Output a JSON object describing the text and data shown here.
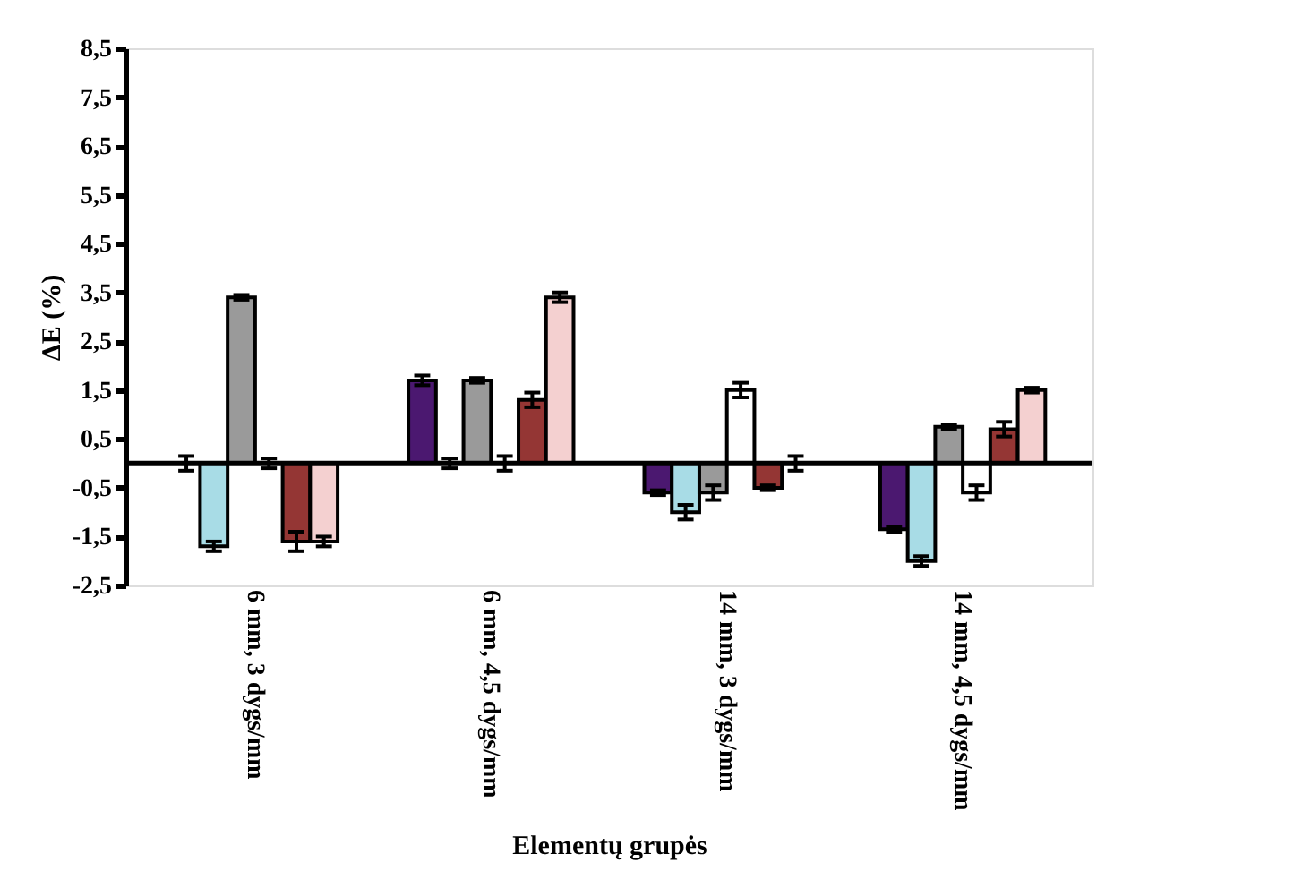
{
  "chart_data": {
    "type": "bar",
    "xlabel": "Elementų grupės",
    "ylabel": "ΔE (%)",
    "categories": [
      "6 mm, 3 dygs/mm",
      "6 mm, 4,5 dygs/mm",
      "14 mm, 3 dygs/mm",
      "14 mm, 4,5 dygs/mm"
    ],
    "series": [
      {
        "color": "#4b1870",
        "values": [
          0.0,
          1.7,
          -0.6,
          -1.35
        ],
        "errors": [
          0.15,
          0.1,
          0.05,
          0.05
        ]
      },
      {
        "color": "#a8dce6",
        "values": [
          -1.7,
          0.0,
          -1.0,
          -2.0
        ],
        "errors": [
          0.1,
          0.1,
          0.15,
          0.1
        ]
      },
      {
        "color": "#9a9a9a",
        "values": [
          3.4,
          1.7,
          -0.6,
          0.75
        ],
        "errors": [
          0.05,
          0.05,
          0.15,
          0.05
        ]
      },
      {
        "color": "#ffffff",
        "values": [
          0.0,
          0.0,
          1.5,
          -0.6
        ],
        "errors": [
          0.1,
          0.15,
          0.15,
          0.15
        ]
      },
      {
        "color": "#943634",
        "values": [
          -1.6,
          1.3,
          -0.5,
          0.7
        ],
        "errors": [
          0.2,
          0.15,
          0.05,
          0.15
        ]
      },
      {
        "color": "#f4d0d0",
        "values": [
          -1.6,
          3.4,
          0.0,
          1.5
        ],
        "errors": [
          0.1,
          0.1,
          0.15,
          0.05
        ]
      }
    ],
    "ylim": [
      -2.5,
      8.5
    ],
    "yticks": [
      {
        "value": -2.5,
        "label": "-2,5"
      },
      {
        "value": -1.5,
        "label": "-1,5"
      },
      {
        "value": -0.5,
        "label": "-0,5"
      },
      {
        "value": 0.5,
        "label": "0,5"
      },
      {
        "value": 1.5,
        "label": "1,5"
      },
      {
        "value": 2.5,
        "label": "2,5"
      },
      {
        "value": 3.5,
        "label": "3,5"
      },
      {
        "value": 4.5,
        "label": "4,5"
      },
      {
        "value": 5.5,
        "label": "5,5"
      },
      {
        "value": 6.5,
        "label": "6,5"
      },
      {
        "value": 7.5,
        "label": "7,5"
      },
      {
        "value": 8.5,
        "label": "8,5"
      }
    ],
    "grid": false,
    "legend": false
  }
}
